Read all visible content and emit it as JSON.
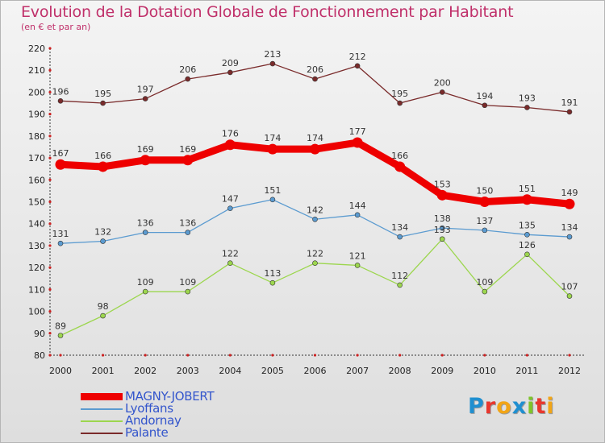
{
  "title": "Evolution de la Dotation Globale de Fonctionnement par Habitant",
  "subtitle": "(en € et par an)",
  "logo": {
    "text": "Proxiti",
    "letters": [
      {
        "ch": "P",
        "color": "#1f8fd0"
      },
      {
        "ch": "r",
        "color": "#e8372e"
      },
      {
        "ch": "o",
        "color": "#f2a516"
      },
      {
        "ch": "x",
        "color": "#1f8fd0"
      },
      {
        "ch": "i",
        "color": "#7ec42a"
      },
      {
        "ch": "t",
        "color": "#e8372e"
      },
      {
        "ch": "i",
        "color": "#f2a516"
      }
    ]
  },
  "chart_data": {
    "type": "line",
    "x": [
      "2000",
      "2001",
      "2002",
      "2003",
      "2004",
      "2005",
      "2006",
      "2007",
      "2008",
      "2009",
      "2010",
      "2011",
      "2012"
    ],
    "ylim": [
      80,
      220
    ],
    "yticks": [
      80,
      90,
      100,
      110,
      120,
      130,
      140,
      150,
      160,
      170,
      180,
      190,
      200,
      210,
      220
    ],
    "grid": false,
    "legend_placement": "bottom-left",
    "series": [
      {
        "name": "MAGNY-JOBERT",
        "color": "#ee0000",
        "labelColor": "#3355cc",
        "emphasis": true,
        "values": [
          167,
          166,
          169,
          169,
          176,
          174,
          174,
          177,
          166,
          153,
          150,
          151,
          149
        ]
      },
      {
        "name": "Lyoffans",
        "color": "#5b9bd0",
        "labelColor": "#3355cc",
        "emphasis": false,
        "values": [
          131,
          132,
          136,
          136,
          147,
          151,
          142,
          144,
          134,
          138,
          137,
          135,
          134
        ]
      },
      {
        "name": "Andornay",
        "color": "#9cd64e",
        "labelColor": "#3355cc",
        "emphasis": false,
        "values": [
          89,
          98,
          109,
          109,
          122,
          113,
          122,
          121,
          112,
          133,
          109,
          126,
          107
        ]
      },
      {
        "name": "Palante",
        "color": "#7a2b2b",
        "labelColor": "#3355cc",
        "emphasis": false,
        "values": [
          196,
          195,
          197,
          206,
          209,
          213,
          206,
          212,
          195,
          200,
          194,
          193,
          191
        ]
      }
    ]
  }
}
